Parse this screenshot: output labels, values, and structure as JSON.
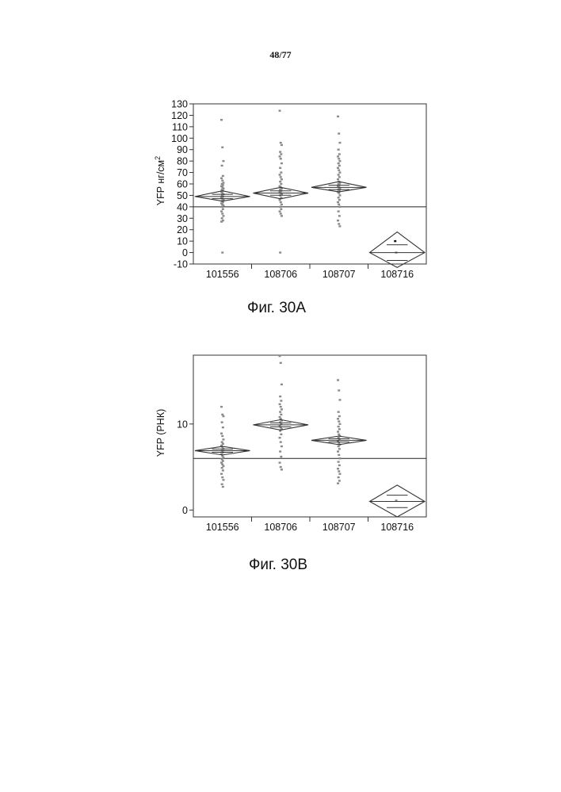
{
  "page_number": "48/77",
  "captions": [
    "Фиг. 30A",
    "Фиг. 30B"
  ],
  "chart_data": [
    {
      "type": "scatter",
      "title": "",
      "xlabel": "",
      "ylabel": "YFP нг/см",
      "ylabel_superscript": "2",
      "categories": [
        "101556",
        "108706",
        "108707",
        "108716"
      ],
      "ylim": [
        -10,
        130
      ],
      "yticks": [
        -10,
        0,
        10,
        20,
        30,
        40,
        50,
        60,
        70,
        80,
        90,
        100,
        110,
        120,
        130
      ],
      "reference_line": 40,
      "means": [
        49,
        52,
        57,
        0
      ],
      "ci_low": [
        45,
        47,
        53,
        -13
      ],
      "ci_high": [
        54,
        57,
        62,
        18
      ],
      "points": [
        [
          116,
          92,
          80,
          76,
          67,
          65,
          63,
          61,
          60,
          59,
          58,
          57,
          56,
          55,
          54,
          53,
          52,
          51,
          50,
          49,
          48,
          47,
          46,
          45,
          44,
          43,
          42,
          41,
          40,
          38,
          36,
          34,
          32,
          30,
          28,
          27,
          0
        ],
        [
          124,
          96,
          94,
          88,
          86,
          84,
          82,
          78,
          74,
          70,
          68,
          66,
          64,
          62,
          60,
          58,
          57,
          56,
          55,
          54,
          53,
          52,
          51,
          50,
          48,
          46,
          44,
          42,
          40,
          38,
          36,
          34,
          32,
          0
        ],
        [
          119,
          104,
          96,
          90,
          86,
          84,
          82,
          80,
          78,
          76,
          74,
          72,
          70,
          68,
          66,
          64,
          62,
          61,
          60,
          59,
          58,
          57,
          56,
          55,
          54,
          53,
          52,
          50,
          48,
          46,
          44,
          42,
          40,
          36,
          32,
          28,
          25,
          23
        ],
        [
          0
        ]
      ],
      "isolated_points": [
        {
          "category_index": 3.5,
          "y": 10
        }
      ]
    },
    {
      "type": "scatter",
      "title": "",
      "xlabel": "",
      "ylabel": "YFP  (РНК)",
      "categories": [
        "101556",
        "108706",
        "108707",
        "108716"
      ],
      "ylim": [
        -0.8,
        18
      ],
      "yticks": [
        0,
        10
      ],
      "reference_line": 6,
      "means": [
        6.9,
        9.9,
        8.1,
        1.0
      ],
      "ci_low": [
        6.4,
        9.3,
        7.6,
        -0.8
      ],
      "ci_high": [
        7.4,
        10.5,
        8.6,
        2.9
      ],
      "points": [
        [
          12,
          11.1,
          10.9,
          10.2,
          9.6,
          8.9,
          8.6,
          8.2,
          7.9,
          7.7,
          7.5,
          7.3,
          7.1,
          6.9,
          6.7,
          6.5,
          6.3,
          6.1,
          5.9,
          5.7,
          5.5,
          5.3,
          5.1,
          4.9,
          4.6,
          4.2,
          3.8,
          3.5,
          3.0,
          2.7
        ],
        [
          17.9,
          17.1,
          14.6,
          13.2,
          12.7,
          12.3,
          12.0,
          11.7,
          11.4,
          11.1,
          10.8,
          10.6,
          10.4,
          10.2,
          10.0,
          9.8,
          9.6,
          9.4,
          9.2,
          8.8,
          8.4,
          7.9,
          7.4,
          6.8,
          6.2,
          5.5,
          5.0,
          4.7
        ],
        [
          15.1,
          13.9,
          12.8,
          11.4,
          10.9,
          10.6,
          10.3,
          10.0,
          9.7,
          9.4,
          9.1,
          8.8,
          8.6,
          8.4,
          8.2,
          8.0,
          7.8,
          7.6,
          7.4,
          7.1,
          6.8,
          6.4,
          6.0,
          5.6,
          5.2,
          4.8,
          4.5,
          4.2,
          3.8,
          3.4,
          3.1
        ],
        [
          1.1
        ]
      ],
      "isolated_points": []
    }
  ]
}
